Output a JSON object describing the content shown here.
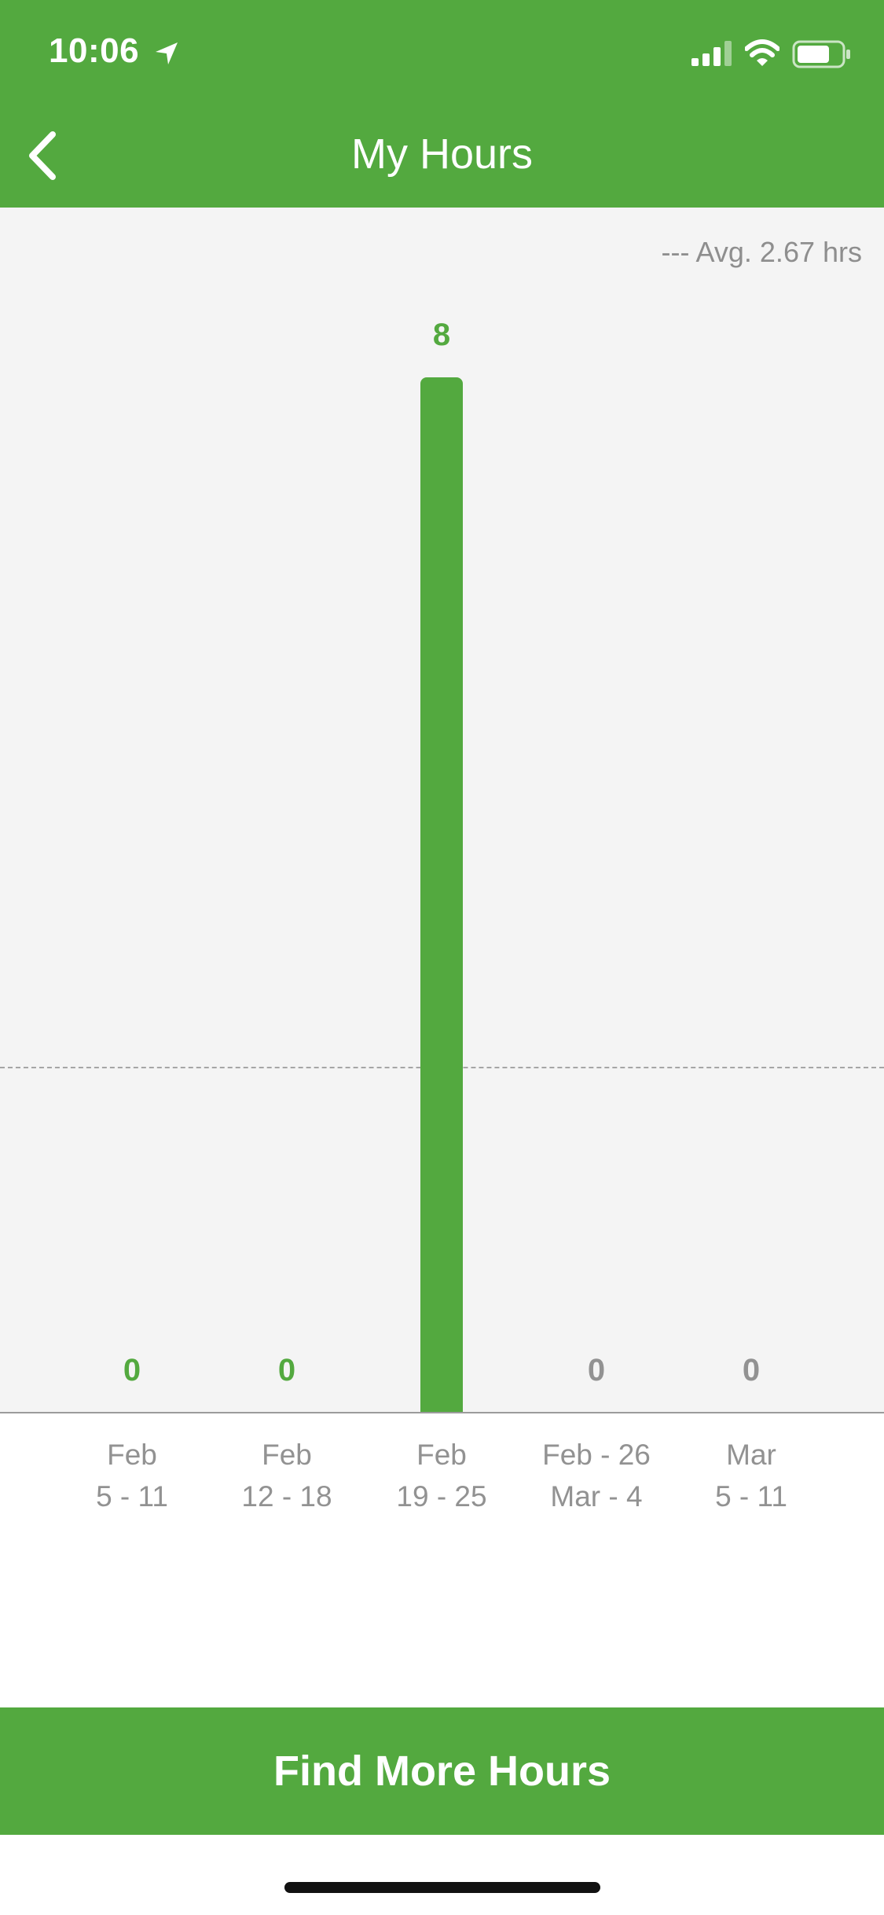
{
  "status_bar": {
    "time": "10:06",
    "icons": [
      "location-arrow-icon",
      "cellular-signal-icon",
      "wifi-icon",
      "battery-icon"
    ]
  },
  "header": {
    "title": "My Hours",
    "back_icon": "chevron-left-icon"
  },
  "legend": {
    "average_label": "--- Avg. 2.67 hrs"
  },
  "chart_data": {
    "type": "bar",
    "categories": [
      [
        "Feb",
        "5 - 11"
      ],
      [
        "Feb",
        "12 - 18"
      ],
      [
        "Feb",
        "19 - 25"
      ],
      [
        "Feb - 26",
        "Mar - 4"
      ],
      [
        "Mar",
        "5 - 11"
      ]
    ],
    "values": [
      0,
      0,
      8,
      0,
      0
    ],
    "value_labels": [
      "0",
      "0",
      "8",
      "0",
      "0"
    ],
    "average": 2.67,
    "ylim": [
      0,
      8
    ],
    "grid": false,
    "legend_position": "top-right",
    "colors": {
      "bar": "#53a93f",
      "past_label": "#53a93f",
      "future_label": "#929292",
      "avg_line": "#a5a5a5"
    },
    "past_count": 3
  },
  "actions": {
    "find_more_hours": "Find More Hours"
  },
  "theme": {
    "primary": "#53a93f",
    "chart_bg": "#f4f4f4",
    "muted_text": "#929292"
  }
}
